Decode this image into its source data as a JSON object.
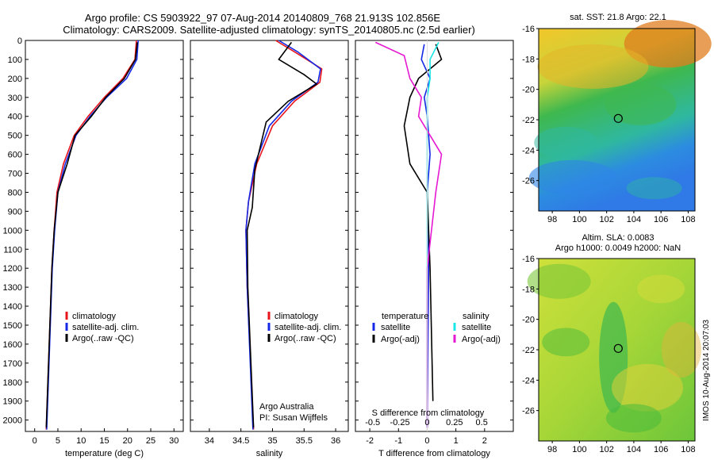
{
  "figure": {
    "title_line1": "Argo profile: CS 5903922_97 07-Aug-2014 20140809_768 21.913S 102.856E",
    "title_line2": "Climatology: CARS2009. Satellite-adjusted climatology: synTS_20140805.nc (2.5d earlier)",
    "side_stamp": "IMOS 10-Aug-2014 20:07:03"
  },
  "colors": {
    "climatology": "#e8141b",
    "satellite": "#1428e6",
    "argo": "#000000",
    "satellite_salinity": "#19e6e6",
    "argo_salinity_diff": "#e619d2"
  },
  "chart_data": [
    {
      "type": "line",
      "panel": "temperature",
      "xlabel": "temperature (deg C)",
      "ylabel": "",
      "xlim": [
        -2,
        32
      ],
      "ylim": [
        2060,
        0
      ],
      "xticks": [
        "0",
        "5",
        "10",
        "15",
        "20",
        "25",
        "30"
      ],
      "yticks": [
        "0",
        "100",
        "200",
        "300",
        "400",
        "500",
        "600",
        "700",
        "800",
        "900",
        "1000",
        "1100",
        "1200",
        "1300",
        "1400",
        "1500",
        "1600",
        "1700",
        "1800",
        "1900",
        "2000"
      ],
      "legend": [
        "climatology",
        "satellite-adj. clim.",
        "Argo(..raw -QC)"
      ],
      "series": [
        {
          "name": "climatology",
          "color_key": "climatology",
          "x": [
            21.9,
            21.6,
            19.0,
            15.0,
            11.5,
            8.5,
            6.2,
            4.8,
            4.2,
            3.7,
            2.5
          ],
          "y": [
            0,
            100,
            200,
            300,
            400,
            500,
            650,
            800,
            1000,
            1200,
            2050
          ]
        },
        {
          "name": "satellite-adj. clim.",
          "color_key": "satellite",
          "x": [
            22.3,
            22.0,
            19.8,
            15.5,
            11.9,
            8.9,
            6.6,
            5.0,
            4.3,
            3.8,
            2.6
          ],
          "y": [
            0,
            100,
            200,
            300,
            400,
            500,
            650,
            800,
            1000,
            1200,
            2050
          ]
        },
        {
          "name": "Argo(..raw -QC)",
          "color_key": "argo",
          "x": [
            22.1,
            21.7,
            19.3,
            15.3,
            12.2,
            8.7,
            7.0,
            5.0,
            4.2,
            3.7,
            2.5
          ],
          "y": [
            10,
            100,
            200,
            300,
            400,
            500,
            650,
            800,
            1000,
            1200,
            2040
          ]
        }
      ]
    },
    {
      "type": "line",
      "panel": "salinity",
      "xlabel": "salinity",
      "ylabel": "",
      "xlim": [
        33.7,
        36.2
      ],
      "ylim": [
        2060,
        0
      ],
      "xticks": [
        "34",
        "34.5",
        "35",
        "35.5",
        "36"
      ],
      "legend": [
        "climatology",
        "satellite-adj. clim.",
        "Argo(..raw -QC)"
      ],
      "annotations": [
        "Argo Australia",
        "PI: Susan Wijffels"
      ],
      "series": [
        {
          "name": "climatology",
          "color_key": "climatology",
          "x": [
            35.05,
            35.35,
            35.78,
            35.75,
            35.35,
            35.0,
            34.75,
            34.62,
            34.58,
            34.6,
            34.7
          ],
          "y": [
            0,
            60,
            150,
            220,
            320,
            450,
            650,
            850,
            1000,
            1300,
            2050
          ]
        },
        {
          "name": "satellite-adj. clim.",
          "color_key": "satellite",
          "x": [
            35.1,
            35.4,
            35.76,
            35.72,
            35.3,
            34.95,
            34.72,
            34.62,
            34.58,
            34.6,
            34.69
          ],
          "y": [
            0,
            60,
            150,
            220,
            320,
            450,
            650,
            850,
            1000,
            1300,
            2050
          ]
        },
        {
          "name": "Argo(..raw -QC)",
          "color_key": "argo",
          "x": [
            35.3,
            35.1,
            35.5,
            35.7,
            35.25,
            34.9,
            34.72,
            34.68,
            34.6,
            34.61,
            34.7
          ],
          "y": [
            10,
            100,
            180,
            230,
            320,
            430,
            680,
            880,
            1000,
            1300,
            2040
          ]
        }
      ]
    },
    {
      "type": "line",
      "panel": "difference",
      "xlabel": "T difference from climatology",
      "xlabel_top": "S difference from climatology",
      "xlim": [
        -2.5,
        3.0
      ],
      "ylim": [
        2060,
        0
      ],
      "xticks": [
        "-2",
        "-1",
        "0",
        "1",
        "2"
      ],
      "xticks_salinity": [
        "-0.5",
        "-0.25",
        "0",
        "0.25",
        "0.5"
      ],
      "legend_temperature_title": "temperature",
      "legend_salinity_title": "salinity",
      "legend": [
        "satellite",
        "Argo(-adj)",
        "satellite",
        "Argo(-adj)"
      ],
      "series": [
        {
          "name": "satellite",
          "group": "temperature",
          "color_key": "satellite",
          "x": [
            -0.1,
            -0.2,
            0.1,
            -0.1,
            0.0,
            0.1,
            0.0,
            0.05,
            0.0
          ],
          "y": [
            20,
            100,
            200,
            300,
            400,
            600,
            800,
            1200,
            2040
          ]
        },
        {
          "name": "Argo(-adj)",
          "group": "temperature",
          "color_key": "argo",
          "x": [
            0.3,
            0.5,
            -0.3,
            -0.6,
            -0.8,
            -0.6,
            0.0,
            0.1,
            0.2
          ],
          "y": [
            20,
            100,
            200,
            300,
            450,
            650,
            800,
            1200,
            1900
          ]
        },
        {
          "name": "satellite",
          "group": "salinity",
          "color_key": "satellite_salinity",
          "x": [
            0.4,
            0.1,
            0.1,
            0.0,
            0.0,
            0.0,
            0.0,
            0.0
          ],
          "y": [
            10,
            100,
            200,
            300,
            500,
            800,
            1200,
            2040
          ]
        },
        {
          "name": "Argo(-adj)",
          "group": "salinity",
          "color_key": "argo_salinity_diff",
          "x": [
            -1.8,
            -0.8,
            -0.6,
            -0.2,
            -0.3,
            0.5,
            0.3,
            0.0,
            0.0
          ],
          "y": [
            10,
            80,
            200,
            300,
            400,
            600,
            800,
            1200,
            2040
          ]
        }
      ]
    },
    {
      "type": "heatmap",
      "panel": "sst_map",
      "title": "sat. SST: 21.8 Argo: 22.1",
      "xlim": [
        97,
        108.5
      ],
      "ylim": [
        -28,
        -16
      ],
      "xticks": [
        "98",
        "100",
        "102",
        "104",
        "106",
        "108"
      ],
      "yticks": [
        "-16",
        "-18",
        "-20",
        "-22",
        "-24",
        "-26"
      ],
      "marker": {
        "lon": 102.856,
        "lat": -21.913
      }
    },
    {
      "type": "heatmap",
      "panel": "sla_map",
      "title_line1": "Altim. SLA: 0.0083",
      "title_line2": "Argo h1000: 0.0049 h2000: NaN",
      "xlim": [
        97,
        108.5
      ],
      "ylim": [
        -28,
        -16
      ],
      "xticks": [
        "98",
        "100",
        "102",
        "104",
        "106",
        "108"
      ],
      "yticks": [
        "-16",
        "-18",
        "-20",
        "-22",
        "-24",
        "-26"
      ],
      "marker": {
        "lon": 102.856,
        "lat": -21.913
      }
    }
  ]
}
